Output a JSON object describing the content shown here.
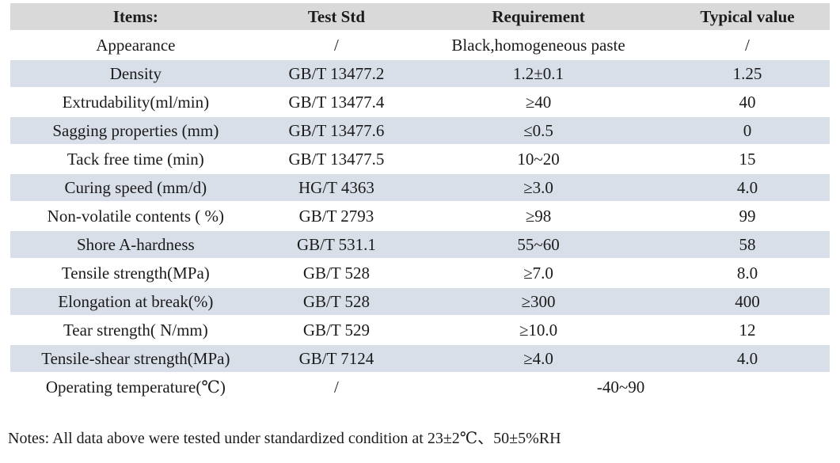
{
  "colors": {
    "page_bg": "#ffffff",
    "header_bg": "#d9d9d9",
    "stripe_bg": "#d9dfe9",
    "text": "#1b1b1b"
  },
  "table": {
    "headers": [
      "Items:",
      "Test Std",
      "Requirement",
      "Typical value"
    ],
    "rows": [
      {
        "item": "Appearance",
        "std": "/",
        "req": "Black,homogeneous paste",
        "typ": "/"
      },
      {
        "item": "Density",
        "std": "GB/T 13477.2",
        "req": "1.2±0.1",
        "typ": "1.25"
      },
      {
        "item": "Extrudability(ml/min)",
        "std": "GB/T 13477.4",
        "req": "≥40",
        "typ": "40"
      },
      {
        "item": "Sagging properties (mm)",
        "std": "GB/T 13477.6",
        "req": "≤0.5",
        "typ": "0"
      },
      {
        "item": "Tack free time (min)",
        "std": "GB/T 13477.5",
        "req": "10~20",
        "typ": "15"
      },
      {
        "item": "Curing speed (mm/d)",
        "std": "HG/T 4363",
        "req": "≥3.0",
        "typ": "4.0"
      },
      {
        "item": "Non-volatile contents ( %)",
        "std": "GB/T 2793",
        "req": "≥98",
        "typ": "99"
      },
      {
        "item": "Shore A-hardness",
        "std": "GB/T 531.1",
        "req": "55~60",
        "typ": "58"
      },
      {
        "item": "Tensile strength(MPa)",
        "std": "GB/T 528",
        "req": "≥7.0",
        "typ": "8.0"
      },
      {
        "item": "Elongation at break(%)",
        "std": "GB/T 528",
        "req": "≥300",
        "typ": "400"
      },
      {
        "item": "Tear strength( N/mm)",
        "std": "GB/T 529",
        "req": "≥10.0",
        "typ": "12"
      },
      {
        "item": "Tensile-shear strength(MPa)",
        "std": "GB/T 7124",
        "req": "≥4.0",
        "typ": "4.0"
      },
      {
        "item": "Operating temperature(℃)",
        "std": "/",
        "req": "-40~90",
        "req_colspan": 2
      }
    ]
  },
  "notes": "Notes: All data above were tested under standardized condition at 23±2℃、50±5%RH"
}
